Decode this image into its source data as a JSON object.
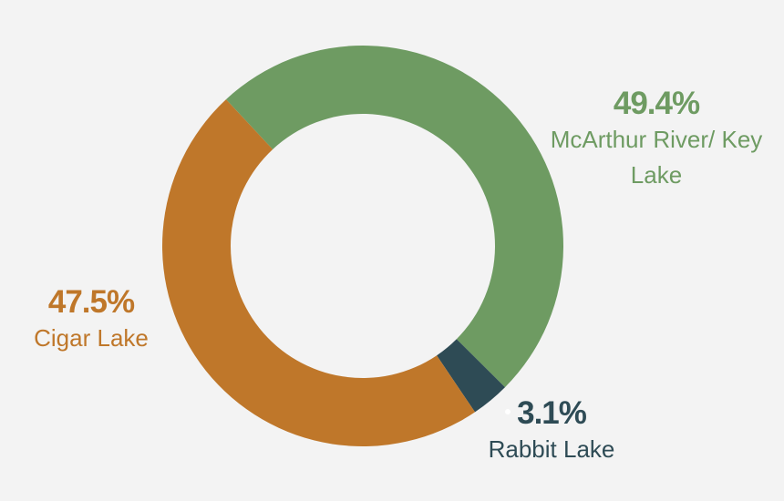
{
  "chart_data": {
    "type": "donut",
    "categories": [
      "McArthur River/ Key Lake",
      "Rabbit Lake",
      "Cigar Lake"
    ],
    "values": [
      49.4,
      3.1,
      47.5
    ],
    "value_labels": [
      "49.4%",
      "3.1%",
      "47.5%"
    ],
    "colors": [
      "#6e9b62",
      "#2e4b55",
      "#bf772a"
    ]
  }
}
